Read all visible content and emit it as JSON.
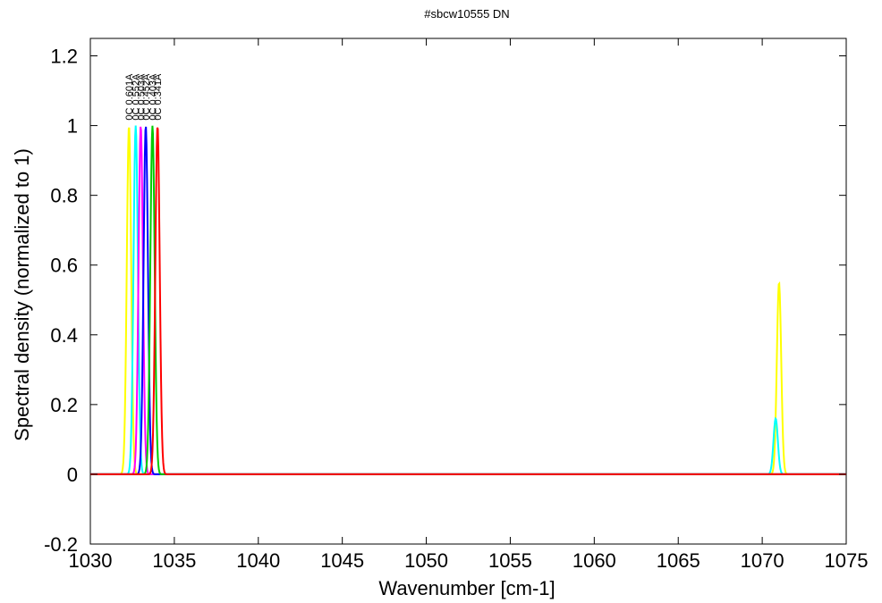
{
  "chart_data": {
    "type": "line",
    "title": "#sbcw10555 DN",
    "xlabel": "Wavenumber [cm-1]",
    "ylabel": "Spectral density (normalized to 1)",
    "xlim": [
      1030,
      1075
    ],
    "ylim": [
      -0.2,
      1.25
    ],
    "xticks": [
      1030,
      1035,
      1040,
      1045,
      1050,
      1055,
      1060,
      1065,
      1070,
      1075
    ],
    "yticks": [
      -0.2,
      0,
      0.2,
      0.4,
      0.6,
      0.8,
      1,
      1.2
    ],
    "grid": false,
    "legend": "none",
    "series": [
      {
        "name": "0C 0.601A",
        "color": "#ffff00",
        "peak_x": 1032.3,
        "peak_y": 1.0,
        "secondary_peak_x": 1071.0,
        "secondary_peak_y": 0.55
      },
      {
        "name": "0C 0.552A",
        "color": "#00ffff",
        "peak_x": 1032.7,
        "peak_y": 1.0,
        "secondary_peak_x": 1070.8,
        "secondary_peak_y": 0.16
      },
      {
        "name": "0C 0.503A",
        "color": "#ff00ff",
        "peak_x": 1033.0,
        "peak_y": 1.0,
        "secondary_peak_x": 1070.8,
        "secondary_peak_y": 0.0
      },
      {
        "name": "0C 0.452A",
        "color": "#0000ff",
        "peak_x": 1033.3,
        "peak_y": 1.0,
        "secondary_peak_x": 1070.8,
        "secondary_peak_y": 0.0
      },
      {
        "name": "0C 0.403A",
        "color": "#00cc00",
        "peak_x": 1033.7,
        "peak_y": 1.0,
        "secondary_peak_x": 1070.8,
        "secondary_peak_y": 0.0
      },
      {
        "name": "0C 0.341A",
        "color": "#ff0000",
        "peak_x": 1034.0,
        "peak_y": 1.0,
        "secondary_peak_x": 1070.8,
        "secondary_peak_y": 0.0
      }
    ]
  }
}
